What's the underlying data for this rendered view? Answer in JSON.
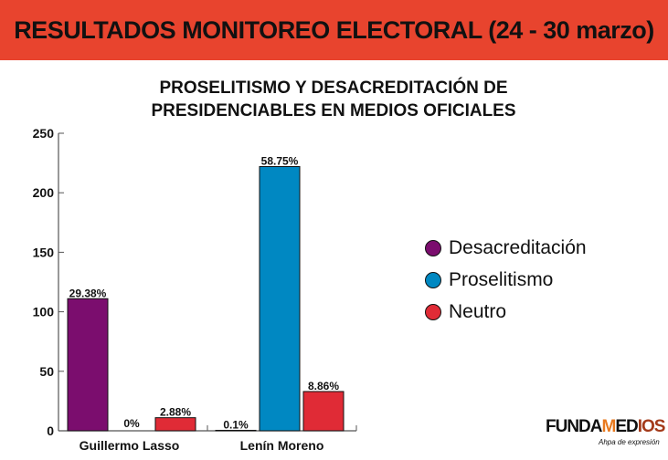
{
  "header": {
    "title": "RESULTADOS MONITOREO ELECTORAL (24 - 30 marzo)"
  },
  "chart_data": {
    "type": "bar",
    "title_lines": [
      "PROSELITISMO Y DESACREDITACIÓN DE",
      "PRESIDENCIABLES EN MEDIOS OFICIALES"
    ],
    "categories": [
      "Guillermo Lasso",
      "Lenín Moreno"
    ],
    "series": [
      {
        "name": "Desacreditación",
        "color": "#7b0d6e",
        "values": [
          111,
          0.4
        ],
        "labels": [
          "29.38%",
          "0.1%"
        ]
      },
      {
        "name": "Proselitismo",
        "color": "#0088c2",
        "values": [
          0,
          222
        ],
        "labels": [
          "0%",
          "58.75%"
        ]
      },
      {
        "name": "Neutro",
        "color": "#e02b36",
        "values": [
          11,
          33
        ],
        "labels": [
          "2.88%",
          "8.86%"
        ]
      }
    ],
    "ylim": [
      0,
      250
    ],
    "yticks": [
      0,
      50,
      100,
      150,
      200,
      250
    ],
    "grid": false,
    "legend": "right"
  },
  "logo": {
    "text_a": "FUNDA",
    "text_m": "M",
    "text_b": "ED",
    "text_i": "IOS",
    "tagline": "Ahpa de expresión"
  }
}
